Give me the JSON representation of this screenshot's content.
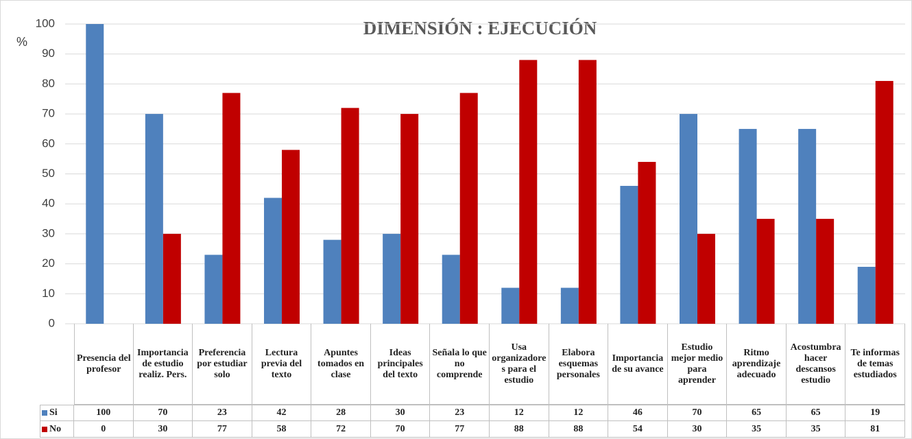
{
  "chart_data": {
    "type": "bar",
    "title": "DIMENSIÓN :  EJECUCIÓN",
    "y_label": "%",
    "categories": [
      "Presencia del profesor",
      "Importancia de estudio realiz. Pers.",
      "Preferencia por estudiar solo",
      "Lectura previa del texto",
      "Apuntes tomados en clase",
      "Ideas principales del texto",
      "Señala lo que no comprende",
      "Usa organizadores para el estudio",
      "Elabora esquemas personales",
      "Importancia de su avance",
      "Estudio mejor medio para aprender",
      "Ritmo aprendizaje adecuado",
      "Acostumbra hacer descansos estudio",
      "Te informas de temas estudiados"
    ],
    "series": [
      {
        "name": "Si",
        "color": "#4f81bd",
        "values": [
          100,
          70,
          23,
          42,
          28,
          30,
          23,
          12,
          12,
          46,
          70,
          65,
          65,
          19
        ]
      },
      {
        "name": "No",
        "color": "#c00000",
        "values": [
          0,
          30,
          77,
          58,
          72,
          70,
          77,
          88,
          88,
          54,
          30,
          35,
          35,
          81
        ]
      }
    ],
    "ylim": [
      0,
      100
    ],
    "yticks": [
      0,
      10,
      20,
      30,
      40,
      50,
      60,
      70,
      80,
      90,
      100
    ],
    "grid": true,
    "legend": "data-table"
  }
}
